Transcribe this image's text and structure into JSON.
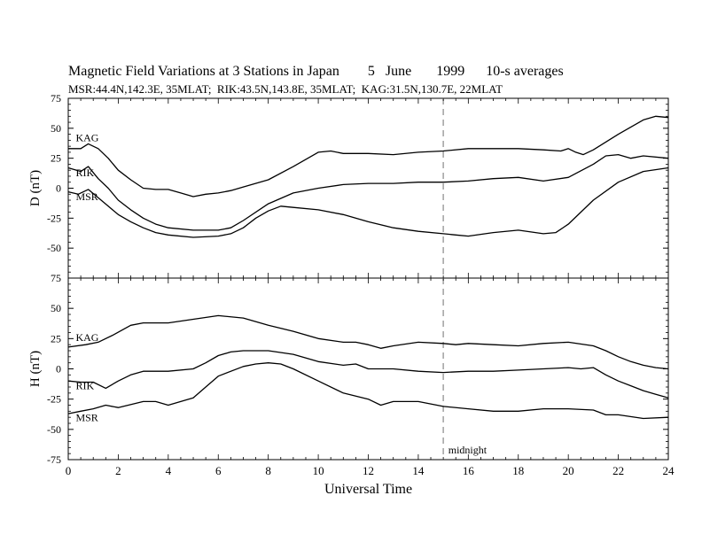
{
  "title_line_1": "Magnetic Field Variations at 3 Stations in Japan        5   June       1999      10-s averages",
  "title_line_2": "MSR:44.4N,142.3E, 35MLAT;  RIK:43.5N,143.8E, 35MLAT;  KAG:31.5N,130.7E, 22MLAT",
  "chart_data": [
    {
      "type": "line",
      "panel": "D",
      "ylabel": "D (nT)",
      "ylim": [
        -75,
        75
      ],
      "yticks": [
        -75,
        -50,
        -25,
        0,
        25,
        50,
        75
      ],
      "xlim": [
        0,
        24
      ],
      "grid": false,
      "series": [
        {
          "name": "KAG",
          "x": [
            0,
            0.5,
            0.8,
            1.2,
            1.6,
            2,
            2.5,
            3,
            3.5,
            4,
            4.5,
            5,
            5.5,
            6,
            6.5,
            7,
            8,
            9,
            10,
            10.5,
            11,
            12,
            13,
            14,
            15,
            16,
            17,
            18,
            19,
            19.7,
            20,
            20.3,
            20.6,
            21,
            22,
            23,
            23.5,
            24
          ],
          "y": [
            33,
            33,
            37,
            33,
            25,
            15,
            7,
            0,
            -1,
            -1,
            -4,
            -7,
            -5,
            -4,
            -2,
            1,
            7,
            18,
            30,
            31,
            29,
            29,
            28,
            30,
            31,
            33,
            33,
            33,
            32,
            31,
            33,
            30,
            28,
            32,
            45,
            57,
            60,
            59
          ]
        },
        {
          "name": "RIK",
          "x": [
            0,
            0.5,
            0.8,
            1.2,
            1.6,
            2,
            2.5,
            3,
            3.5,
            4,
            5,
            6,
            6.5,
            7,
            8,
            9,
            10,
            11,
            12,
            13,
            14,
            15,
            16,
            17,
            18,
            19,
            20,
            21,
            21.5,
            22,
            22.5,
            23,
            24
          ],
          "y": [
            17,
            14,
            18,
            8,
            0,
            -10,
            -18,
            -25,
            -30,
            -33,
            -35,
            -35,
            -33,
            -27,
            -13,
            -4,
            0,
            3,
            4,
            4,
            5,
            5,
            6,
            8,
            9,
            6,
            9,
            20,
            27,
            28,
            25,
            27,
            25
          ]
        },
        {
          "name": "MSR",
          "x": [
            0,
            0.4,
            0.8,
            1.2,
            1.6,
            2,
            2.5,
            3,
            3.5,
            4,
            5,
            6,
            6.5,
            7,
            7.5,
            8,
            8.5,
            9,
            10,
            11,
            12,
            13,
            14,
            15,
            15.5,
            16,
            17,
            18,
            19,
            19.5,
            20,
            21,
            22,
            23,
            24
          ],
          "y": [
            -3,
            -5,
            -1,
            -8,
            -15,
            -22,
            -28,
            -33,
            -37,
            -39,
            -41,
            -40,
            -38,
            -33,
            -25,
            -19,
            -15,
            -16,
            -18,
            -22,
            -28,
            -33,
            -36,
            -38,
            -39,
            -40,
            -37,
            -35,
            -38,
            -37,
            -30,
            -10,
            5,
            14,
            17
          ]
        }
      ],
      "annotations": [
        {
          "text": "KAG",
          "x": 0.3,
          "y": 39
        },
        {
          "text": "RIK",
          "x": 0.3,
          "y": 10
        },
        {
          "text": "MSR",
          "x": 0.3,
          "y": -10
        }
      ]
    },
    {
      "type": "line",
      "panel": "H",
      "ylabel": "H (nT)",
      "xlabel": "Universal Time",
      "ylim": [
        -75,
        75
      ],
      "yticks": [
        -75,
        -50,
        -25,
        0,
        25,
        50,
        75
      ],
      "xlim": [
        0,
        24
      ],
      "xticks": [
        0,
        2,
        4,
        6,
        8,
        10,
        12,
        14,
        16,
        18,
        20,
        22,
        24
      ],
      "grid": false,
      "series": [
        {
          "name": "KAG",
          "x": [
            0,
            0.7,
            1.2,
            1.8,
            2.5,
            3,
            4,
            5,
            6,
            7,
            8,
            9,
            10,
            11,
            11.5,
            12,
            12.5,
            13,
            14,
            15,
            15.5,
            16,
            17,
            18,
            19,
            20,
            21,
            21.5,
            22,
            22.5,
            23,
            23.5,
            24
          ],
          "y": [
            18,
            20,
            22,
            28,
            36,
            38,
            38,
            41,
            44,
            42,
            36,
            31,
            25,
            22,
            22,
            20,
            17,
            19,
            22,
            21,
            20,
            21,
            20,
            19,
            21,
            22,
            19,
            15,
            10,
            6,
            3,
            1,
            0
          ]
        },
        {
          "name": "RIK",
          "x": [
            0,
            0.5,
            1,
            1.5,
            2,
            2.5,
            3,
            4,
            5,
            5.5,
            6,
            6.5,
            7,
            7.5,
            8,
            9,
            10,
            11,
            11.5,
            12,
            13,
            14,
            15,
            16,
            17,
            18,
            19,
            20,
            20.5,
            21,
            21.5,
            22,
            22.5,
            23,
            23.5,
            24
          ],
          "y": [
            -10,
            -11,
            -11,
            -16,
            -10,
            -5,
            -2,
            -2,
            0,
            5,
            11,
            14,
            15,
            15,
            15,
            12,
            6,
            3,
            4,
            0,
            0,
            -2,
            -3,
            -2,
            -2,
            -1,
            0,
            1,
            0,
            1,
            -5,
            -10,
            -14,
            -18,
            -21,
            -24
          ]
        },
        {
          "name": "MSR",
          "x": [
            0,
            0.5,
            1,
            1.5,
            2,
            3,
            3.5,
            4,
            4.5,
            5,
            5.5,
            6,
            7,
            7.5,
            8,
            8.5,
            9,
            10,
            11,
            12,
            12.5,
            13,
            14,
            15,
            16,
            17,
            18,
            19,
            20,
            21,
            21.5,
            22,
            23,
            24
          ],
          "y": [
            -37,
            -35,
            -33,
            -30,
            -32,
            -27,
            -27,
            -30,
            -27,
            -24,
            -15,
            -6,
            2,
            4,
            5,
            4,
            0,
            -10,
            -20,
            -25,
            -30,
            -27,
            -27,
            -31,
            -33,
            -35,
            -35,
            -33,
            -33,
            -34,
            -38,
            -38,
            -41,
            -40
          ]
        }
      ],
      "annotations": [
        {
          "text": "KAG",
          "x": 0.3,
          "y": 23
        },
        {
          "text": "RIK",
          "x": 0.3,
          "y": -17
        },
        {
          "text": "MSR",
          "x": 0.3,
          "y": -43
        },
        {
          "text": "midnight",
          "x": 15.2,
          "y": -70
        }
      ]
    }
  ],
  "midnight_ut": 15,
  "colors": {
    "line": "#000000",
    "midnight_line": "#a0a0a0"
  }
}
